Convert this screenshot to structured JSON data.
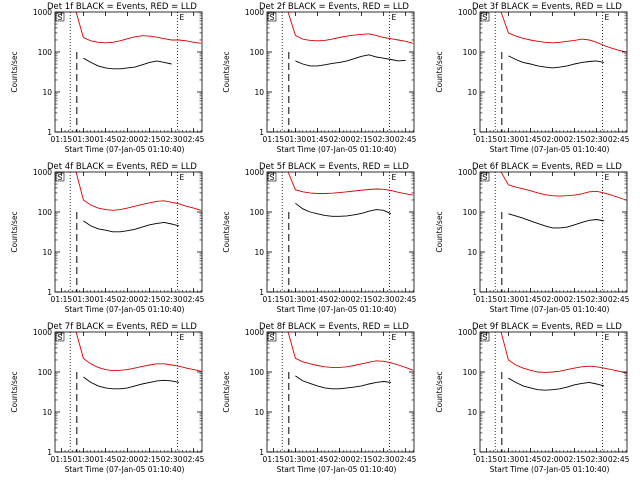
{
  "colors": {
    "events": "#000000",
    "lld": "#dd0000",
    "axes": "#000000",
    "background": "#ffffff"
  },
  "shared": {
    "ylabel": "Counts/sec",
    "xlabel": "Start Time (07-Jan-05 01:10:40)",
    "x_ticks": [
      "01:15",
      "01:30",
      "01:45",
      "02:00",
      "02:15",
      "02:30",
      "02:45"
    ],
    "y_ticks": [
      "1",
      "10",
      "100",
      "1000"
    ],
    "marker_S": "S",
    "marker_E": "E"
  },
  "chart_data": [
    {
      "type": "line",
      "title": "Det 1f BLACK = Events, RED = LLD",
      "x_range": [
        "01:10:40",
        "02:50:40"
      ],
      "ylim": [
        1,
        1000
      ],
      "yscale": "log",
      "dotted_lines": [
        "01:21",
        "02:34"
      ],
      "dashed_line": "01:25:30",
      "x": [
        "01:25",
        "01:30",
        "01:35",
        "01:40",
        "01:45",
        "01:50",
        "01:55",
        "02:00",
        "02:05",
        "02:10",
        "02:15",
        "02:20",
        "02:25",
        "02:30",
        "02:35",
        "02:40",
        "02:45",
        "02:50"
      ],
      "series": [
        {
          "values": [
            1000,
            230,
            190,
            175,
            170,
            175,
            190,
            215,
            240,
            255,
            250,
            235,
            215,
            200,
            200,
            190,
            175,
            165
          ]
        },
        {
          "values": [
            null,
            70,
            55,
            45,
            40,
            38,
            38,
            40,
            42,
            48,
            55,
            60,
            55,
            50,
            null,
            null,
            null,
            null
          ]
        }
      ]
    },
    {
      "type": "line",
      "title": "Det 2f BLACK = Events, RED = LLD",
      "x_range": [
        "01:10:40",
        "02:50:40"
      ],
      "ylim": [
        1,
        1000
      ],
      "yscale": "log",
      "dotted_lines": [
        "01:21",
        "02:34"
      ],
      "dashed_line": "01:25:30",
      "x": [
        "01:25",
        "01:30",
        "01:35",
        "01:40",
        "01:45",
        "01:50",
        "01:55",
        "02:00",
        "02:05",
        "02:10",
        "02:15",
        "02:20",
        "02:25",
        "02:30",
        "02:35",
        "02:40",
        "02:45",
        "02:50"
      ],
      "series": [
        {
          "values": [
            1000,
            260,
            210,
            195,
            190,
            195,
            210,
            230,
            250,
            265,
            275,
            285,
            260,
            230,
            215,
            200,
            185,
            165
          ]
        },
        {
          "values": [
            null,
            60,
            50,
            45,
            45,
            48,
            52,
            55,
            60,
            68,
            78,
            85,
            75,
            70,
            65,
            60,
            62,
            null
          ]
        }
      ]
    },
    {
      "type": "line",
      "title": "Det 3f BLACK = Events, RED = LLD",
      "x_range": [
        "01:10:40",
        "02:50:40"
      ],
      "ylim": [
        1,
        1000
      ],
      "yscale": "log",
      "dotted_lines": [
        "01:21",
        "02:34"
      ],
      "dashed_line": "01:25:30",
      "x": [
        "01:25",
        "01:30",
        "01:35",
        "01:40",
        "01:45",
        "01:50",
        "01:55",
        "02:00",
        "02:05",
        "02:10",
        "02:15",
        "02:20",
        "02:25",
        "02:30",
        "02:35",
        "02:40",
        "02:45",
        "02:50"
      ],
      "series": [
        {
          "values": [
            1000,
            300,
            250,
            220,
            200,
            185,
            175,
            170,
            175,
            185,
            195,
            210,
            200,
            175,
            145,
            125,
            110,
            100
          ]
        },
        {
          "values": [
            null,
            80,
            65,
            55,
            50,
            45,
            42,
            40,
            42,
            45,
            50,
            55,
            58,
            60,
            55,
            null,
            null,
            null
          ]
        }
      ]
    },
    {
      "type": "line",
      "title": "Det 4f BLACK = Events, RED = LLD",
      "x_range": [
        "01:10:40",
        "02:50:40"
      ],
      "ylim": [
        1,
        1000
      ],
      "yscale": "log",
      "dotted_lines": [
        "01:21",
        "02:34"
      ],
      "dashed_line": "01:25:30",
      "x": [
        "01:25",
        "01:30",
        "01:35",
        "01:40",
        "01:45",
        "01:50",
        "01:55",
        "02:00",
        "02:05",
        "02:10",
        "02:15",
        "02:20",
        "02:25",
        "02:30",
        "02:35",
        "02:40",
        "02:45",
        "02:50"
      ],
      "series": [
        {
          "values": [
            1000,
            200,
            150,
            125,
            115,
            110,
            115,
            125,
            140,
            155,
            170,
            185,
            190,
            175,
            160,
            140,
            125,
            110
          ]
        },
        {
          "values": [
            null,
            60,
            45,
            38,
            35,
            32,
            32,
            34,
            37,
            42,
            48,
            52,
            55,
            50,
            45,
            null,
            null,
            null
          ]
        }
      ]
    },
    {
      "type": "line",
      "title": "Det 5f BLACK = Events, RED = LLD",
      "x_range": [
        "01:10:40",
        "02:50:40"
      ],
      "ylim": [
        1,
        1000
      ],
      "yscale": "log",
      "dotted_lines": [
        "01:21",
        "02:34"
      ],
      "dashed_line": "01:25:30",
      "x": [
        "01:25",
        "01:30",
        "01:35",
        "01:40",
        "01:45",
        "01:50",
        "01:55",
        "02:00",
        "02:05",
        "02:10",
        "02:15",
        "02:20",
        "02:25",
        "02:30",
        "02:35",
        "02:40",
        "02:45",
        "02:50"
      ],
      "series": [
        {
          "values": [
            1000,
            360,
            320,
            300,
            290,
            290,
            295,
            305,
            320,
            335,
            350,
            365,
            375,
            370,
            345,
            310,
            285,
            265
          ]
        },
        {
          "values": [
            null,
            165,
            120,
            100,
            90,
            82,
            78,
            78,
            80,
            85,
            92,
            105,
            115,
            110,
            90,
            null,
            null,
            null
          ]
        }
      ]
    },
    {
      "type": "line",
      "title": "Det 6f BLACK = Events, RED = LLD",
      "x_range": [
        "01:10:40",
        "02:50:40"
      ],
      "ylim": [
        1,
        1000
      ],
      "yscale": "log",
      "dotted_lines": [
        "01:21",
        "02:34"
      ],
      "dashed_line": "01:25:30",
      "x": [
        "01:25",
        "01:30",
        "01:35",
        "01:40",
        "01:45",
        "01:50",
        "01:55",
        "02:00",
        "02:05",
        "02:10",
        "02:15",
        "02:20",
        "02:25",
        "02:30",
        "02:35",
        "02:40",
        "02:45",
        "02:50"
      ],
      "series": [
        {
          "values": [
            1000,
            480,
            420,
            380,
            340,
            300,
            270,
            255,
            250,
            255,
            265,
            285,
            320,
            330,
            300,
            265,
            230,
            200
          ]
        },
        {
          "values": [
            null,
            90,
            80,
            70,
            60,
            52,
            45,
            40,
            40,
            42,
            48,
            55,
            62,
            65,
            60,
            null,
            null,
            null
          ]
        }
      ]
    },
    {
      "type": "line",
      "title": "Det 7f BLACK = Events, RED = LLD",
      "x_range": [
        "01:10:40",
        "02:50:40"
      ],
      "ylim": [
        1,
        1000
      ],
      "yscale": "log",
      "dotted_lines": [
        "01:21",
        "02:34"
      ],
      "dashed_line": "01:25:30",
      "x": [
        "01:25",
        "01:30",
        "01:35",
        "01:40",
        "01:45",
        "01:50",
        "01:55",
        "02:00",
        "02:05",
        "02:10",
        "02:15",
        "02:20",
        "02:25",
        "02:30",
        "02:35",
        "02:40",
        "02:45",
        "02:50"
      ],
      "series": [
        {
          "values": [
            1000,
            220,
            160,
            130,
            115,
            108,
            110,
            115,
            125,
            138,
            150,
            160,
            160,
            150,
            140,
            125,
            115,
            105
          ]
        },
        {
          "values": [
            null,
            75,
            55,
            45,
            40,
            38,
            38,
            40,
            45,
            50,
            55,
            60,
            62,
            60,
            55,
            null,
            null,
            null
          ]
        }
      ]
    },
    {
      "type": "line",
      "title": "Det 8f BLACK = Events, RED = LLD",
      "x_range": [
        "01:10:40",
        "02:50:40"
      ],
      "ylim": [
        1,
        1000
      ],
      "yscale": "log",
      "dotted_lines": [
        "01:21",
        "02:34"
      ],
      "dashed_line": "01:25:30",
      "x": [
        "01:25",
        "01:30",
        "01:35",
        "01:40",
        "01:45",
        "01:50",
        "01:55",
        "02:00",
        "02:05",
        "02:10",
        "02:15",
        "02:20",
        "02:25",
        "02:30",
        "02:35",
        "02:40",
        "02:45",
        "02:50"
      ],
      "series": [
        {
          "values": [
            1000,
            220,
            180,
            160,
            145,
            135,
            130,
            130,
            135,
            145,
            160,
            175,
            190,
            185,
            170,
            150,
            130,
            110
          ]
        },
        {
          "values": [
            null,
            80,
            60,
            52,
            45,
            40,
            38,
            38,
            40,
            42,
            45,
            50,
            55,
            58,
            55,
            null,
            null,
            null
          ]
        }
      ]
    },
    {
      "type": "line",
      "title": "Det 9f BLACK = Events, RED = LLD",
      "x_range": [
        "01:10:40",
        "02:50:40"
      ],
      "ylim": [
        1,
        1000
      ],
      "yscale": "log",
      "dotted_lines": [
        "01:21",
        "02:34"
      ],
      "dashed_line": "01:25:30",
      "x": [
        "01:25",
        "01:30",
        "01:35",
        "01:40",
        "01:45",
        "01:50",
        "01:55",
        "02:00",
        "02:05",
        "02:10",
        "02:15",
        "02:20",
        "02:25",
        "02:30",
        "02:35",
        "02:40",
        "02:45",
        "02:50"
      ],
      "series": [
        {
          "values": [
            1000,
            200,
            150,
            125,
            110,
            100,
            98,
            100,
            105,
            115,
            125,
            135,
            140,
            135,
            125,
            115,
            105,
            95
          ]
        },
        {
          "values": [
            null,
            70,
            55,
            45,
            40,
            36,
            35,
            36,
            38,
            42,
            48,
            52,
            55,
            50,
            45,
            null,
            null,
            null
          ]
        }
      ]
    }
  ]
}
